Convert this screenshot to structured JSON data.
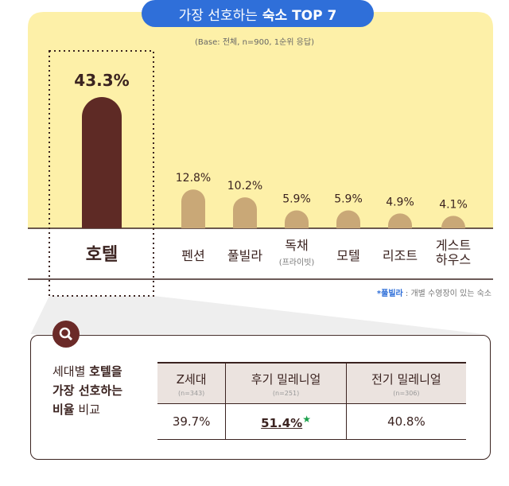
{
  "header": {
    "title_normal": "가장 선호하는",
    "title_bold": "숙소 TOP 7",
    "base": "(Base: 전체, n=900, 1순위 응답)"
  },
  "chart_data": {
    "type": "bar",
    "title": "가장 선호하는 숙소 TOP 7",
    "categories": [
      "호텔",
      "펜션",
      "풀빌라*",
      "독채",
      "모텔",
      "리조트",
      "게스트 하우스"
    ],
    "sub_labels": [
      "",
      "",
      "",
      "(프라이빗)",
      "",
      "",
      ""
    ],
    "values": [
      43.3,
      12.8,
      10.2,
      5.9,
      5.9,
      4.9,
      4.1
    ],
    "value_labels": [
      "43.3%",
      "12.8%",
      "10.2%",
      "5.9%",
      "5.9%",
      "4.9%",
      "4.1%"
    ],
    "ylim": [
      0,
      45
    ],
    "unit": "%",
    "highlight": "호텔",
    "colors": {
      "highlight": "#5e2a25",
      "other": "#c9a877",
      "panel": "#fdf0a8"
    }
  },
  "footnote": {
    "term": "*풀빌라",
    "desc": " : 개별 수영장이 있는 숙소"
  },
  "compare": {
    "line1_a": "세대별 ",
    "line1_b": "호텔을",
    "line2": "가장 선호하는",
    "line3_a": "비율",
    "line3_b": " 비교",
    "columns": [
      {
        "name": "Z세대",
        "n": "(n=343)",
        "value": "39.7%"
      },
      {
        "name": "후기 밀레니얼",
        "n": "(n=251)",
        "value": "51.4%"
      },
      {
        "name": "전기 밀레니얼",
        "n": "(n=306)",
        "value": "40.8%"
      }
    ]
  }
}
